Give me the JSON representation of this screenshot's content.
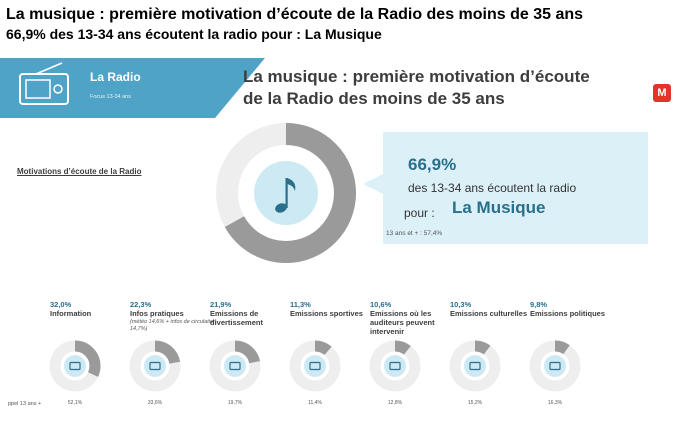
{
  "header": {
    "title": "La musique : première motivation d’écoute de la Radio des moins de 35 ans",
    "subtitle": "66,9% des 13-34 ans écoutent la radio pour : La Musique"
  },
  "banner": {
    "title": "La Radio",
    "focus": "Focus 13-34 ans",
    "color": "#4fa3c7"
  },
  "infographic": {
    "title_line1": "La musique : première motivation d’écoute",
    "title_line2": "de la Radio des moins de 35 ans",
    "logo_letter": "M",
    "section_label": "Motivations d’écoute de la Radio"
  },
  "main_callout": {
    "percent": "66,9%",
    "line1": "des 13-34 ans écoutent la radio",
    "pour": "pour :",
    "highlight": "La Musique",
    "note": "13 ans et + : 57,4%",
    "icon": "music-note-icon"
  },
  "footer": {
    "reference_label": "ppel 13 ans +"
  },
  "chart_data": {
    "type": "donut",
    "main": {
      "name": "Musique",
      "value": 66.9,
      "reference_13_plus": 57.4
    },
    "categories": [
      {
        "pct_label": "32,0%",
        "label": "Information",
        "note": "",
        "value": 32.0,
        "ref_label": "52,1%",
        "icon": "newspaper-icon"
      },
      {
        "pct_label": "22,3%",
        "label": "Infos pratiques",
        "note": "(météo 14,6% + infos de circulation 14,7%)",
        "value": 22.3,
        "ref_label": "33,6%",
        "icon": "weather-traffic-icon"
      },
      {
        "pct_label": "21,9%",
        "label": "Emissions de divertissement",
        "note": "",
        "value": 21.9,
        "ref_label": "19,7%",
        "icon": "smiley-screen-icon"
      },
      {
        "pct_label": "11,3%",
        "label": "Emissions sportives",
        "note": "",
        "value": 11.3,
        "ref_label": "11,4%",
        "icon": "football-icon"
      },
      {
        "pct_label": "10,6%",
        "label": "Emissions où les auditeurs peuvent intervenir",
        "note": "",
        "value": 10.6,
        "ref_label": "12,8%",
        "icon": "microphone-icon"
      },
      {
        "pct_label": "10,3%",
        "label": "Emissions culturelles",
        "note": "",
        "value": 10.3,
        "ref_label": "15,2%",
        "icon": "theater-mask-icon"
      },
      {
        "pct_label": "9,8%",
        "label": "Emissions politiques",
        "note": "",
        "value": 9.8,
        "ref_label": "16,3%",
        "icon": "handshake-icon"
      }
    ],
    "colors": {
      "value": "#9a9a9a",
      "rest": "#eeeeee",
      "center": "#cde9f4",
      "accent": "#2a6f8c"
    }
  }
}
